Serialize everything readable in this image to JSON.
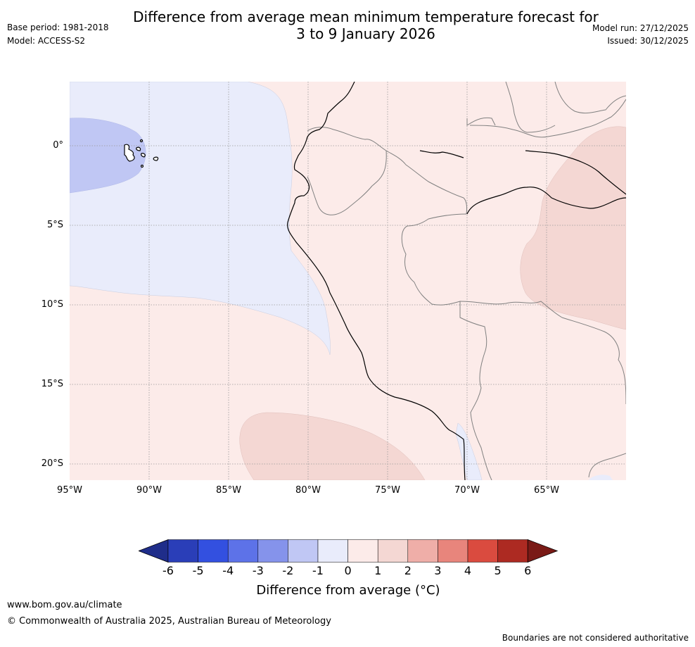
{
  "header": {
    "title_line1": "Difference from average mean minimum temperature forecast for",
    "title_line2": "3 to 9 January 2026",
    "base_period": "Base period: 1981-2018",
    "model": "Model: ACCESS-S2",
    "model_run": "Model run: 27/12/2025",
    "issued": "Issued: 30/12/2025"
  },
  "map": {
    "lat_labels": [
      "0°",
      "5°S",
      "10°S",
      "15°S",
      "20°S"
    ],
    "lon_labels": [
      "95°W",
      "90°W",
      "85°W",
      "80°W",
      "75°W",
      "70°W",
      "65°W"
    ],
    "colors": {
      "ocean_minus1_0": "#e9ecfb",
      "galapagos_minus2_1": "#c0c7f4",
      "plus0_1": "#fcebe9",
      "plus1_2": "#f4d7d3",
      "coast": "#000000",
      "border": "#808080"
    }
  },
  "colorbar": {
    "ticks": [
      "-6",
      "-5",
      "-4",
      "-3",
      "-2",
      "-1",
      "0",
      "1",
      "2",
      "3",
      "4",
      "5",
      "6"
    ],
    "colors": [
      "#1f2d8a",
      "#2a3eb8",
      "#3350e0",
      "#5d72e8",
      "#8593eb",
      "#c0c7f4",
      "#e9ecfb",
      "#fcebe9",
      "#f4d7d3",
      "#efaea8",
      "#e8857c",
      "#da4b3f",
      "#ad2a22",
      "#7a1a16"
    ],
    "label": "Difference from average (°C)"
  },
  "footer": {
    "website": "www.bom.gov.au/climate",
    "copyright": "© Commonwealth of Australia 2025, Australian Bureau of Meteorology",
    "disclaimer": "Boundaries are not considered authoritative"
  }
}
